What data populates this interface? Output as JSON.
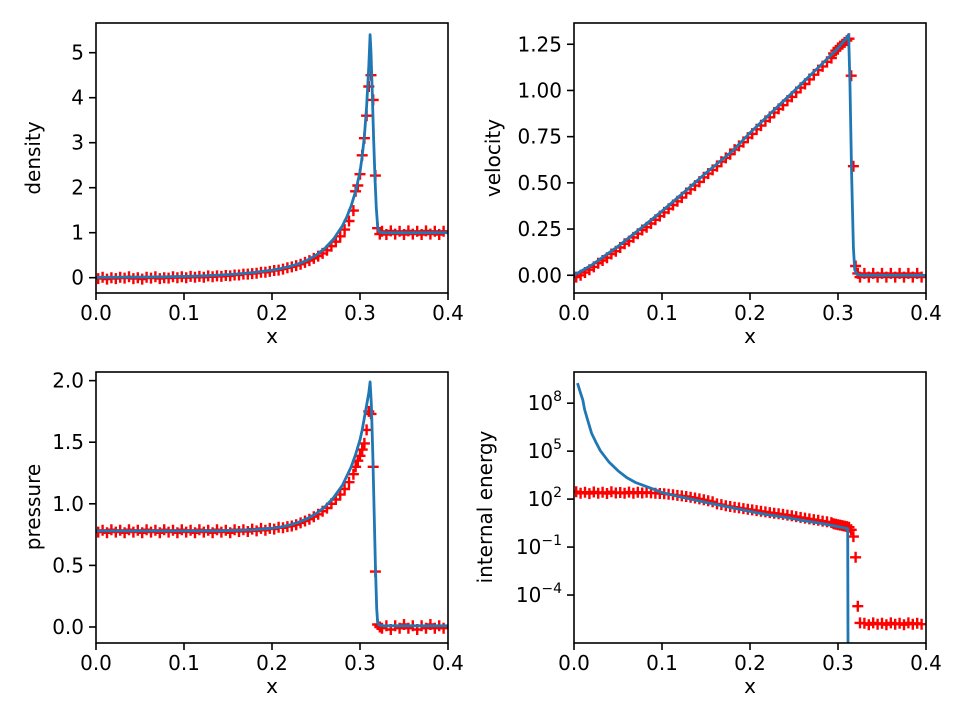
{
  "chart_data": {
    "type": "line",
    "description": "2x2 grid of subplots comparing an exact solution (blue line) with numerical particle data (red plus markers) for a blast-wave test: density, velocity, pressure, internal energy vs x",
    "grid": false,
    "legend": false,
    "line_color": "#1f77b4",
    "marker_color": "#ff0000",
    "marker_symbol": "+",
    "marker_x": [
      0.0025,
      0.0075,
      0.0125,
      0.0175,
      0.0225,
      0.0275,
      0.0325,
      0.0375,
      0.0425,
      0.0475,
      0.0525,
      0.0575,
      0.0625,
      0.0675,
      0.0725,
      0.0775,
      0.0825,
      0.0875,
      0.0925,
      0.0975,
      0.1025,
      0.1075,
      0.1125,
      0.1175,
      0.1225,
      0.1275,
      0.1325,
      0.1375,
      0.1425,
      0.1475,
      0.1525,
      0.1575,
      0.1625,
      0.1675,
      0.1725,
      0.1775,
      0.1825,
      0.1875,
      0.1925,
      0.1975,
      0.2025,
      0.2075,
      0.2125,
      0.2175,
      0.2225,
      0.2275,
      0.2325,
      0.2375,
      0.2425,
      0.2475,
      0.2525,
      0.2575,
      0.2625,
      0.2675,
      0.2725,
      0.2775,
      0.2825,
      0.2875,
      0.2925,
      0.295,
      0.2975,
      0.3,
      0.3025,
      0.305,
      0.3075,
      0.31,
      0.3125,
      0.315,
      0.3175,
      0.32,
      0.3225,
      0.325,
      0.33,
      0.335,
      0.34,
      0.345,
      0.35,
      0.355,
      0.36,
      0.365,
      0.37,
      0.375,
      0.38,
      0.385,
      0.39,
      0.395
    ],
    "subplots": [
      {
        "id": "density",
        "ylabel": "density",
        "xlabel": "x",
        "yscale": "linear",
        "xlim": [
          0,
          0.4
        ],
        "ylim": [
          -0.34,
          5.66
        ],
        "xticks": [
          0,
          0.1,
          0.2,
          0.3,
          0.4
        ],
        "xtick_labels": [
          "0.0",
          "0.1",
          "0.2",
          "0.3",
          "0.4"
        ],
        "yticks": [
          0,
          1,
          2,
          3,
          4,
          5
        ],
        "ytick_labels": [
          "0",
          "1",
          "2",
          "3",
          "4",
          "5"
        ],
        "line": {
          "x": [
            0,
            0.04,
            0.08,
            0.1,
            0.12,
            0.14,
            0.16,
            0.18,
            0.2,
            0.21,
            0.22,
            0.23,
            0.24,
            0.25,
            0.26,
            0.27,
            0.28,
            0.285,
            0.29,
            0.295,
            0.3,
            0.3025,
            0.305,
            0.3075,
            0.31,
            0.3115,
            0.3125,
            0.314,
            0.3155,
            0.317,
            0.3185,
            0.32,
            0.3215,
            0.326,
            0.4
          ],
          "y": [
            0.01,
            0.013,
            0.02,
            0.028,
            0.04,
            0.058,
            0.082,
            0.118,
            0.17,
            0.205,
            0.25,
            0.31,
            0.39,
            0.5,
            0.65,
            0.86,
            1.15,
            1.35,
            1.6,
            1.92,
            2.35,
            2.7,
            3.15,
            3.8,
            4.7,
            5.4,
            5.0,
            4.1,
            3.1,
            2.2,
            1.55,
            1.15,
            1.02,
            1.0,
            1.0
          ]
        },
        "markers": {
          "y": [
            -0.02,
            0.01,
            -0.03,
            0,
            -0.02,
            0.01,
            -0.01,
            0.02,
            -0.02,
            0,
            -0.03,
            0.01,
            -0.01,
            0.02,
            -0.02,
            0,
            -0.01,
            0.02,
            0,
            0.02,
            0,
            0.03,
            0.01,
            0.03,
            0.01,
            0.04,
            0.02,
            0.04,
            0.03,
            0.05,
            0.04,
            0.06,
            0.06,
            0.08,
            0.08,
            0.09,
            0.1,
            0.12,
            0.12,
            0.14,
            0.16,
            0.17,
            0.19,
            0.22,
            0.24,
            0.27,
            0.3,
            0.34,
            0.38,
            0.43,
            0.48,
            0.54,
            0.61,
            0.7,
            0.8,
            0.92,
            1.07,
            1.26,
            1.49,
            1.92,
            2.05,
            2.3,
            2.72,
            3.1,
            3.6,
            4.25,
            4.5,
            3.95,
            2.27,
            1.1,
            0.97,
            1.03,
            0.96,
            1.04,
            0.97,
            1.03,
            0.96,
            1.04,
            0.97,
            1.03,
            0.96,
            1.04,
            0.97,
            1.03,
            0.96,
            1.03
          ]
        }
      },
      {
        "id": "velocity",
        "ylabel": "velocity",
        "xlabel": "x",
        "yscale": "linear",
        "xlim": [
          0,
          0.4
        ],
        "ylim": [
          -0.096,
          1.365
        ],
        "xticks": [
          0,
          0.1,
          0.2,
          0.3,
          0.4
        ],
        "xtick_labels": [
          "0.0",
          "0.1",
          "0.2",
          "0.3",
          "0.4"
        ],
        "yticks": [
          0,
          0.25,
          0.5,
          0.75,
          1.0,
          1.25
        ],
        "ytick_labels": [
          "0.00",
          "0.25",
          "0.50",
          "0.75",
          "1.00",
          "1.25"
        ],
        "line": {
          "x": [
            0,
            0.02,
            0.05,
            0.08,
            0.1,
            0.13,
            0.15,
            0.18,
            0.2,
            0.23,
            0.25,
            0.28,
            0.3,
            0.31,
            0.312,
            0.3135,
            0.3155,
            0.3175,
            0.319,
            0.3215,
            0.326,
            0.4
          ],
          "y": [
            0,
            0.055,
            0.156,
            0.27,
            0.347,
            0.47,
            0.554,
            0.672,
            0.771,
            0.906,
            0.997,
            1.135,
            1.229,
            1.285,
            1.303,
            1.05,
            0.55,
            0.15,
            0.03,
            0.005,
            0,
            0
          ]
        },
        "markers": {
          "y": [
            -0.01,
            0,
            0.015,
            0.03,
            0.045,
            0.065,
            0.08,
            0.095,
            0.115,
            0.13,
            0.15,
            0.17,
            0.185,
            0.205,
            0.225,
            0.245,
            0.26,
            0.28,
            0.3,
            0.32,
            0.34,
            0.36,
            0.38,
            0.4,
            0.42,
            0.445,
            0.465,
            0.485,
            0.505,
            0.53,
            0.55,
            0.57,
            0.59,
            0.615,
            0.635,
            0.655,
            0.68,
            0.7,
            0.72,
            0.745,
            0.765,
            0.79,
            0.81,
            0.835,
            0.855,
            0.88,
            0.9,
            0.92,
            0.945,
            0.965,
            0.99,
            1.015,
            1.035,
            1.06,
            1.085,
            1.11,
            1.13,
            1.155,
            1.175,
            1.2,
            1.215,
            1.23,
            1.24,
            1.25,
            1.26,
            1.27,
            1.28,
            1.08,
            0.59,
            0.05,
            0.01,
            -0.01,
            0.01,
            -0.01,
            0.01,
            -0.01,
            0.01,
            -0.01,
            0.01,
            -0.01,
            0.01,
            -0.01,
            0.01,
            -0.01,
            0.01,
            -0.01
          ]
        }
      },
      {
        "id": "pressure",
        "ylabel": "pressure",
        "xlabel": "x",
        "yscale": "linear",
        "xlim": [
          0,
          0.4
        ],
        "ylim": [
          -0.13,
          2.07
        ],
        "xticks": [
          0,
          0.1,
          0.2,
          0.3,
          0.4
        ],
        "xtick_labels": [
          "0.0",
          "0.1",
          "0.2",
          "0.3",
          "0.4"
        ],
        "yticks": [
          0,
          0.5,
          1.0,
          1.5,
          2.0
        ],
        "ytick_labels": [
          "0.0",
          "0.5",
          "1.0",
          "1.5",
          "2.0"
        ],
        "line": {
          "x": [
            0,
            0.1,
            0.14,
            0.16,
            0.18,
            0.2,
            0.21,
            0.22,
            0.23,
            0.24,
            0.25,
            0.26,
            0.27,
            0.28,
            0.29,
            0.295,
            0.3,
            0.3025,
            0.305,
            0.3075,
            0.31,
            0.3115,
            0.313,
            0.3145,
            0.316,
            0.3175,
            0.319,
            0.32,
            0.3215,
            0.326,
            0.4
          ],
          "y": [
            0.78,
            0.78,
            0.781,
            0.784,
            0.79,
            0.802,
            0.812,
            0.828,
            0.85,
            0.88,
            0.92,
            0.975,
            1.05,
            1.15,
            1.3,
            1.4,
            1.52,
            1.6,
            1.7,
            1.8,
            1.9,
            1.99,
            1.8,
            1.4,
            0.95,
            0.5,
            0.15,
            0.04,
            0.015,
            0.01,
            0.01
          ]
        },
        "markers": {
          "y": [
            0.77,
            0.785,
            0.765,
            0.79,
            0.77,
            0.785,
            0.765,
            0.79,
            0.77,
            0.785,
            0.765,
            0.79,
            0.77,
            0.785,
            0.765,
            0.79,
            0.77,
            0.785,
            0.765,
            0.79,
            0.77,
            0.785,
            0.765,
            0.79,
            0.77,
            0.785,
            0.765,
            0.79,
            0.77,
            0.785,
            0.765,
            0.79,
            0.775,
            0.79,
            0.775,
            0.795,
            0.78,
            0.8,
            0.785,
            0.8,
            0.795,
            0.81,
            0.805,
            0.815,
            0.82,
            0.83,
            0.845,
            0.86,
            0.875,
            0.895,
            0.915,
            0.94,
            0.965,
            1.0,
            1.035,
            1.075,
            1.12,
            1.175,
            1.24,
            1.3,
            1.35,
            1.39,
            1.44,
            1.49,
            1.6,
            1.75,
            1.73,
            1.3,
            0.45,
            0.02,
            0.0,
            -0.01,
            0.01,
            -0.02,
            0.01,
            -0.01,
            0.02,
            -0.01,
            0.01,
            -0.02,
            0.01,
            -0.01,
            0.02,
            -0.01,
            0.01,
            -0.01
          ]
        }
      },
      {
        "id": "internal-energy",
        "ylabel": "internal energy",
        "xlabel": "x",
        "yscale": "log",
        "xlim": [
          0,
          0.4
        ],
        "ylim": [
          1e-07,
          8900000000.0
        ],
        "xticks": [
          0,
          0.1,
          0.2,
          0.3,
          0.4
        ],
        "xtick_labels": [
          "0.0",
          "0.1",
          "0.2",
          "0.3",
          "0.4"
        ],
        "yticks": [
          100000000.0,
          100000.0,
          100,
          0.1,
          0.0001
        ],
        "ytick_labels": [
          "10^8",
          "10^5",
          "10^2",
          "10^-1",
          "10^-4"
        ],
        "line": {
          "x": [
            0.004,
            0.007,
            0.01,
            0.012,
            0.015,
            0.02,
            0.025,
            0.03,
            0.04,
            0.05,
            0.06,
            0.07,
            0.08,
            0.09,
            0.1,
            0.11,
            0.12,
            0.135,
            0.15,
            0.165,
            0.18,
            0.2,
            0.22,
            0.24,
            0.26,
            0.28,
            0.3,
            0.308,
            0.311,
            0.3115
          ],
          "y": [
            1800000000.0,
            500000000.0,
            160000000.0,
            40000000.0,
            11000000.0,
            1300000.0,
            350000.0,
            105000.0,
            20000.0,
            5900,
            2200,
            1100,
            680,
            420,
            260,
            190,
            140,
            95,
            62,
            42,
            28,
            17,
            10.5,
            7.4,
            4.6,
            3.1,
            1.9,
            1.55,
            1.4,
            1e-09
          ]
        },
        "markers": {
          "y": [
            290,
            230,
            270,
            220,
            280,
            235,
            265,
            225,
            285,
            240,
            260,
            230,
            275,
            235,
            270,
            240,
            265,
            245,
            235,
            225,
            215,
            200,
            185,
            170,
            158,
            145,
            132,
            118,
            103,
            90,
            78,
            68,
            50,
            45,
            38,
            34.5,
            31,
            28,
            25.5,
            23,
            21,
            19,
            17.3,
            15.8,
            14.4,
            13.1,
            12,
            11,
            10,
            9.2,
            8.0,
            7.2,
            6.5,
            5.8,
            5.2,
            4.7,
            4.2,
            3.8,
            3.4,
            2.9,
            2.7,
            2.5,
            2.35,
            2.2,
            2.05,
            1.9,
            1.75,
            1.2,
            0.45,
            0.023,
            2e-05,
            1.8e-06,
            1.7e-06,
            1.4e-06,
            1.8e-06,
            1.5e-06,
            1.7e-06,
            1.4e-06,
            1.8e-06,
            1.5e-06,
            1.7e-06,
            1.4e-06,
            1.8e-06,
            1.5e-06,
            1.7e-06,
            1.5e-06
          ]
        }
      }
    ]
  }
}
